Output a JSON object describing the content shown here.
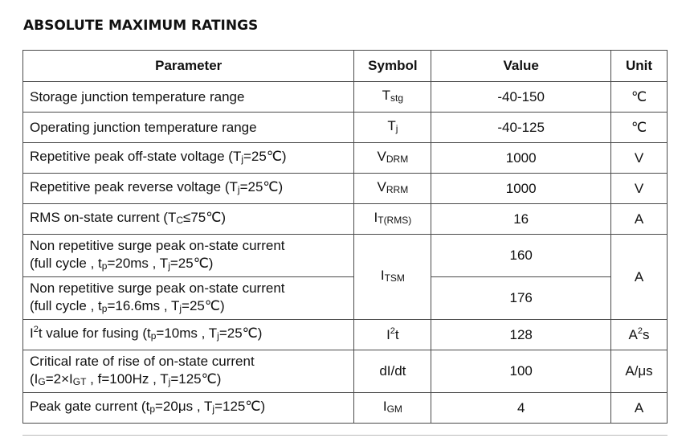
{
  "heading": "ABSOLUTE MAXIMUM RATINGS",
  "columns": {
    "parameter": "Parameter",
    "symbol": "Symbol",
    "value": "Value",
    "unit": "Unit"
  },
  "rows": {
    "tstg": {
      "param": "Storage junction temperature range",
      "sym_main": "T",
      "sym_sub": "stg",
      "value": "-40-150",
      "unit": "℃"
    },
    "tj": {
      "param": "Operating junction temperature range",
      "sym_main": "T",
      "sym_sub": "j",
      "value": "-40-125",
      "unit": "℃"
    },
    "vdrm": {
      "param_a": "Repetitive peak off-state voltage (T",
      "param_sub": "j",
      "param_b": "=25℃)",
      "sym_main": "V",
      "sym_sub": "DRM",
      "value": "1000",
      "unit": "V"
    },
    "vrrm": {
      "param_a": "Repetitive peak reverse voltage (T",
      "param_sub": "j",
      "param_b": "=25℃)",
      "sym_main": "V",
      "sym_sub": "RRM",
      "value": "1000",
      "unit": "V"
    },
    "irms": {
      "param_a": "RMS on-state current (T",
      "param_sub": "C",
      "param_b": "≤75℃)",
      "sym_main": "I",
      "sym_sub": "T(RMS)",
      "value": "16",
      "unit": "A"
    },
    "itsm1": {
      "line1": "Non repetitive surge peak on-state current",
      "l2a": "(full cycle , t",
      "l2sub1": "p",
      "l2b": "=20ms , T",
      "l2sub2": "j",
      "l2c": "=25℃)",
      "value": "160"
    },
    "itsm2": {
      "line1": "Non repetitive surge peak on-state current",
      "l2a": "(full cycle , t",
      "l2sub1": "p",
      "l2b": "=16.6ms , T",
      "l2sub2": "j",
      "l2c": "=25℃)",
      "value": "176"
    },
    "itsm": {
      "sym_main": "I",
      "sym_sub": "TSM",
      "unit": "A"
    },
    "i2t": {
      "pa": "I",
      "psup": "2",
      "pb": "t value for fusing (t",
      "psub1": "p",
      "pc": "=10ms , T",
      "psub2": "j",
      "pd": "=25℃)",
      "sym_main": "I",
      "sym_sup": "2",
      "sym_tail": "t",
      "value": "128",
      "unit_main": "A",
      "unit_sup": "2",
      "unit_tail": "s"
    },
    "didt": {
      "line1": "Critical rate of rise of on-state current",
      "l2a": "(I",
      "l2sub1": "G",
      "l2b": "=2×I",
      "l2sub2": "GT",
      "l2c": " , f=100Hz , T",
      "l2sub3": "j",
      "l2d": "=125℃)",
      "symbol": "dI/dt",
      "value": "100",
      "unit": "A/μs"
    },
    "igm": {
      "pa": "Peak gate current (t",
      "psub1": "p",
      "pb": "=20μs , T",
      "psub2": "j",
      "pc": "=125℃)",
      "sym_main": "I",
      "sym_sub": "GM",
      "value": "4",
      "unit": "A"
    }
  }
}
